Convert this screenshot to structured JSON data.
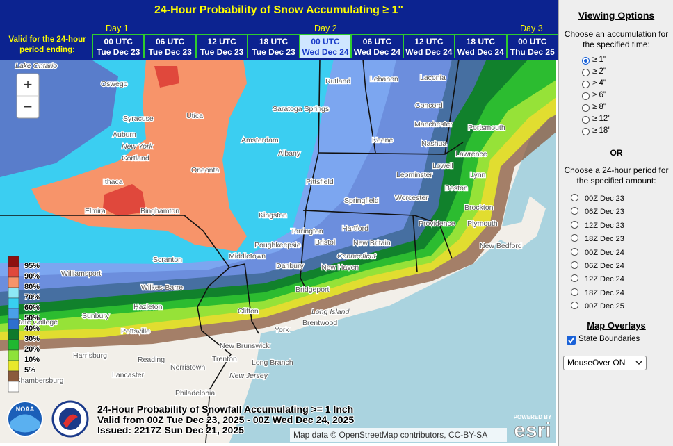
{
  "header": {
    "title": "24-Hour Probability of Snow Accumulating ≥ 1\"",
    "valid_label": "Valid for the 24-hour period ending:",
    "days": [
      "Day 1",
      "Day 2",
      "Day 3"
    ],
    "times": [
      {
        "time": "00 UTC",
        "date": "Tue Dec 23"
      },
      {
        "time": "06 UTC",
        "date": "Tue Dec 23"
      },
      {
        "time": "12 UTC",
        "date": "Tue Dec 23"
      },
      {
        "time": "18 UTC",
        "date": "Tue Dec 23"
      },
      {
        "time": "00 UTC",
        "date": "Wed Dec 24",
        "selected": true
      },
      {
        "time": "06 UTC",
        "date": "Wed Dec 24"
      },
      {
        "time": "12 UTC",
        "date": "Wed Dec 24"
      },
      {
        "time": "18 UTC",
        "date": "Wed Dec 24"
      },
      {
        "time": "00 UTC",
        "date": "Thu Dec 25"
      }
    ]
  },
  "map": {
    "zoom_in": "+",
    "zoom_out": "−",
    "cities": [
      "Lake Ontario",
      "Oswego",
      "Syracuse",
      "Utica",
      "Auburn",
      "New York",
      "Cortland",
      "Oneonta",
      "Ithaca",
      "Elmira",
      "Binghamton",
      "Saratoga Springs",
      "Amsterdam",
      "Albany",
      "Rutland",
      "Lebanon",
      "Laconia",
      "Concord",
      "Manchester",
      "Keene",
      "Nashua",
      "Portsmouth",
      "Lowell",
      "Lawrence",
      "Lynn",
      "Boston",
      "Brockton",
      "Plymouth",
      "New Bedford",
      "Leominster",
      "Worcester",
      "Pittsfield",
      "Springfield",
      "Providence",
      "Hartford",
      "Torrington",
      "Bristol",
      "New Britain",
      "Kingston",
      "Poughkeepsie",
      "Middletown",
      "Danbury",
      "New Haven",
      "Connecticut",
      "Scranton",
      "Williamsport",
      "Wilkes-Barre",
      "Hazleton",
      "Sunbury",
      "State College",
      "Pottsville",
      "Clifton",
      "Bridgeport",
      "Long Island",
      "Brentwood",
      "York",
      "New Brunswick",
      "Harrisburg",
      "Reading",
      "Norristown",
      "Trenton",
      "Long Branch",
      "Lancaster",
      "New Jersey",
      "Philadelphia",
      "Chambersburg"
    ],
    "legend": [
      {
        "label": "95%",
        "color": "#8e1010"
      },
      {
        "label": "90%",
        "color": "#e0483c"
      },
      {
        "label": "80%",
        "color": "#f7946a"
      },
      {
        "label": "70%",
        "color": "#8ee8f5"
      },
      {
        "label": "60%",
        "color": "#38d0f0"
      },
      {
        "label": "50%",
        "color": "#4aa0e8"
      },
      {
        "label": "40%",
        "color": "#2e6fd0"
      },
      {
        "label": "30%",
        "color": "#0e7a2c"
      },
      {
        "label": "20%",
        "color": "#20b830"
      },
      {
        "label": "10%",
        "color": "#8ee23a"
      },
      {
        "label": "5%",
        "color": "#e8e82a"
      }
    ],
    "caption": [
      "24-Hour Probability of Snowfall Accumulating >= 1 Inch",
      "Valid from 00Z Tue Dec 23, 2025 - 00Z Wed Dec 24, 2025",
      "Issued: 2217Z Sun Dec 21, 2025"
    ],
    "attribution": "Map data © OpenStreetMap contributors, CC-BY-SA",
    "noaa": "NOAA",
    "esri_powered": "POWERED BY",
    "esri": "esri"
  },
  "sidebar": {
    "title": "Viewing Options",
    "accum_prompt": "Choose an accumulation for the specified time:",
    "accum_options": [
      "≥ 1\"",
      "≥ 2\"",
      "≥ 4\"",
      "≥ 6\"",
      "≥ 8\"",
      "≥ 12\"",
      "≥ 18\""
    ],
    "or": "OR",
    "period_prompt": "Choose a 24-hour period for the specified amount:",
    "period_options": [
      "00Z Dec 23",
      "06Z Dec 23",
      "12Z Dec 23",
      "18Z Dec 23",
      "00Z Dec 24",
      "06Z Dec 24",
      "12Z Dec 24",
      "18Z Dec 24",
      "00Z Dec 25"
    ],
    "overlays_title": "Map Overlays",
    "overlay_option": "State Boundaries",
    "mouseover": "MouseOver ON"
  }
}
